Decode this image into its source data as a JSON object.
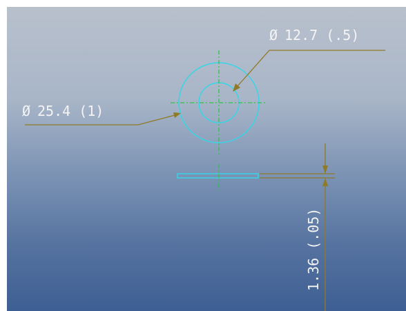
{
  "dimensions": {
    "hole_diameter": {
      "symbol": "Ø",
      "value": "12.7 (.5)"
    },
    "outer_diameter": {
      "symbol": "Ø",
      "value": "25.4 (1)"
    },
    "thickness": {
      "value": "1.36 (.05)"
    }
  },
  "colors": {
    "background_top": "#b8c0cc",
    "background_bottom": "#3e5f93",
    "geometry": "#35d6e6",
    "centerline": "#2fc34a",
    "dimension_line": "#8f7a25",
    "dimension_text": "#f4f4f4"
  }
}
